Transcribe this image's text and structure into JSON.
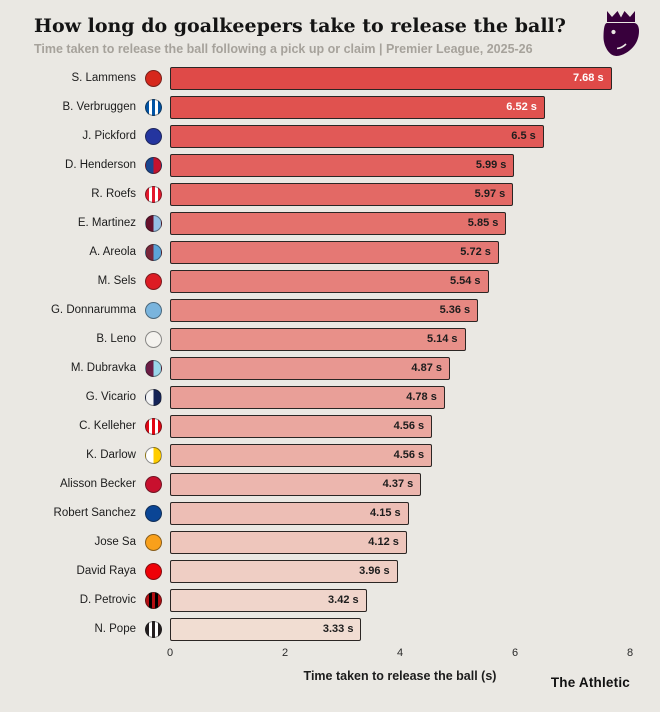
{
  "header": {
    "title": "How long do goalkeepers take to release the ball?",
    "subtitle": "Time taken to release the ball following a pick up or claim | Premier League, 2025-26"
  },
  "chart_data": {
    "type": "bar",
    "orientation": "horizontal",
    "title": "How long do goalkeepers take to release the ball?",
    "subtitle": "Time taken to release the ball following a pick up or claim | Premier League, 2025-26",
    "xlabel": "Time taken to release the ball (s)",
    "xlim": [
      0,
      8
    ],
    "xticks": [
      0,
      2,
      4,
      6,
      8
    ],
    "grid": false,
    "legend": "none",
    "categories": [
      "S. Lammens",
      "B. Verbruggen",
      "J. Pickford",
      "D. Henderson",
      "R. Roefs",
      "E. Martinez",
      "A. Areola",
      "M. Sels",
      "G. Donnarumma",
      "B. Leno",
      "M. Dubravka",
      "G. Vicario",
      "C. Kelleher",
      "K. Darlow",
      "Alisson Becker",
      "Robert Sanchez",
      "Jose Sa",
      "David Raya",
      "D. Petrovic",
      "N. Pope"
    ],
    "values": [
      7.68,
      6.52,
      6.5,
      5.99,
      5.97,
      5.85,
      5.72,
      5.54,
      5.36,
      5.14,
      4.87,
      4.78,
      4.56,
      4.56,
      4.37,
      4.15,
      4.12,
      3.96,
      3.42,
      3.33
    ],
    "value_labels": [
      "7.68 s",
      "6.52 s",
      "6.5 s",
      "5.99 s",
      "5.97 s",
      "5.85 s",
      "5.72 s",
      "5.54 s",
      "5.36 s",
      "5.14 s",
      "4.87 s",
      "4.78 s",
      "4.56 s",
      "4.56 s",
      "4.37 s",
      "4.15 s",
      "4.12 s",
      "3.96 s",
      "3.42 s",
      "3.33 s"
    ],
    "bar_colors": [
      "#df4a48",
      "#e0524f",
      "#e15957",
      "#e2615e",
      "#e36965",
      "#e4716c",
      "#e57874",
      "#e6807b",
      "#e78882",
      "#e89089",
      "#e89791",
      "#e99f98",
      "#eaa79f",
      "#ebafa6",
      "#ecb6ae",
      "#edbeb5",
      "#eec6bc",
      "#efcec4",
      "#f0d5cb",
      "#f1ddd2"
    ],
    "bar_border_color": "#2b2624",
    "clubs": [
      {
        "name": "manchester-united",
        "pattern": "solid",
        "c1": "#d6281c",
        "c2": "#fbe122"
      },
      {
        "name": "brighton",
        "pattern": "stripes",
        "c1": "#0054a6",
        "c2": "#ffffff"
      },
      {
        "name": "everton",
        "pattern": "solid",
        "c1": "#24359f",
        "c2": "#ffffff"
      },
      {
        "name": "crystal-palace",
        "pattern": "halves",
        "c1": "#1b458f",
        "c2": "#c4122e"
      },
      {
        "name": "sunderland",
        "pattern": "stripes",
        "c1": "#e4182c",
        "c2": "#ffffff"
      },
      {
        "name": "aston-villa",
        "pattern": "halves",
        "c1": "#67102c",
        "c2": "#95bfe5"
      },
      {
        "name": "west-ham",
        "pattern": "halves",
        "c1": "#7a263a",
        "c2": "#5ba4d9"
      },
      {
        "name": "nottingham-forest",
        "pattern": "solid",
        "c1": "#dd1c24",
        "c2": "#ffffff"
      },
      {
        "name": "manchester-city",
        "pattern": "solid",
        "c1": "#7ab4dd",
        "c2": "#ffffff"
      },
      {
        "name": "fulham",
        "pattern": "solid",
        "c1": "#f4f2ee",
        "c2": "#000000"
      },
      {
        "name": "burnley",
        "pattern": "halves",
        "c1": "#6c1d45",
        "c2": "#99d6ea"
      },
      {
        "name": "tottenham",
        "pattern": "halves",
        "c1": "#f2f3f5",
        "c2": "#132257"
      },
      {
        "name": "brentford",
        "pattern": "stripes",
        "c1": "#e30613",
        "c2": "#ffffff"
      },
      {
        "name": "leeds-united",
        "pattern": "halves",
        "c1": "#ffffff",
        "c2": "#ffcd00"
      },
      {
        "name": "liverpool",
        "pattern": "solid",
        "c1": "#c8102e",
        "c2": "#ffffff"
      },
      {
        "name": "chelsea",
        "pattern": "solid",
        "c1": "#0a4595",
        "c2": "#ffffff"
      },
      {
        "name": "wolves",
        "pattern": "solid",
        "c1": "#f9a01b",
        "c2": "#231f20"
      },
      {
        "name": "arsenal",
        "pattern": "solid",
        "c1": "#ef0107",
        "c2": "#ffffff"
      },
      {
        "name": "bournemouth",
        "pattern": "stripes",
        "c1": "#b50e12",
        "c2": "#000000"
      },
      {
        "name": "newcastle",
        "pattern": "stripes",
        "c1": "#241f20",
        "c2": "#ffffff"
      }
    ]
  },
  "branding": {
    "premier_league_color": "#38003c",
    "footer_brand": "The Athletic"
  }
}
